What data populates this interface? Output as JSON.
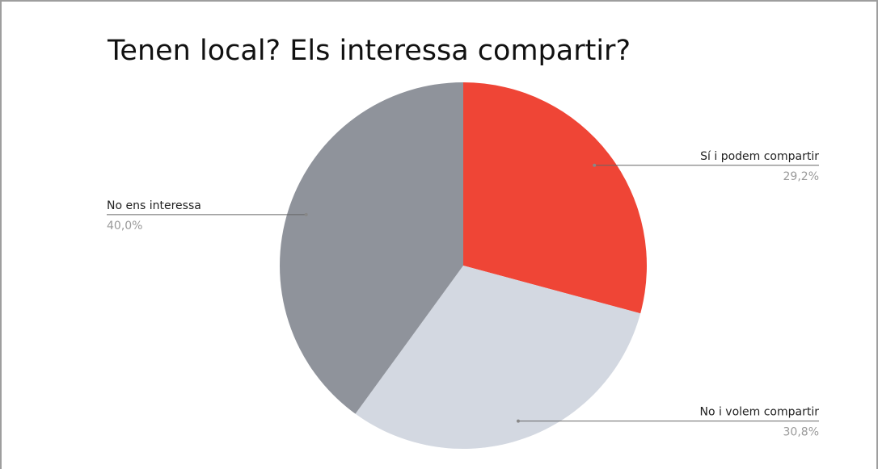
{
  "chart_data": {
    "type": "pie",
    "title": "Tenen local? Els interessa compartir?",
    "categories": [
      "Sí i podem compartir",
      "No i volem compartir",
      "No ens interessa"
    ],
    "values": [
      29.2,
      30.8,
      40.0
    ],
    "value_labels": [
      "29,2%",
      "30,8%",
      "40,0%"
    ],
    "colors": [
      "#ef4536",
      "#d3d8e1",
      "#8f939b"
    ]
  }
}
